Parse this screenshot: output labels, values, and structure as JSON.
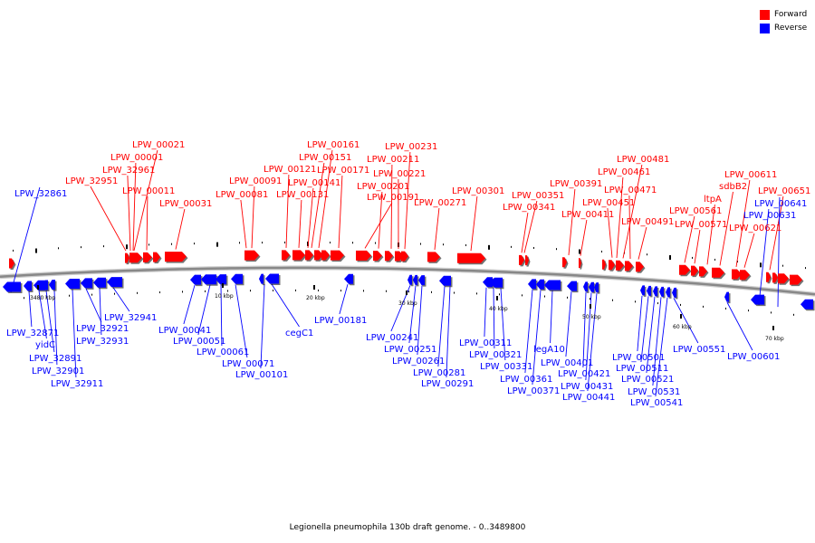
{
  "colors": {
    "forward": "#ff0000",
    "reverse": "#0000ff",
    "backbone": "#999999"
  },
  "legend": {
    "forward_label": "Forward",
    "reverse_label": "Reverse"
  },
  "caption": "Legionella pneumophila 130b draft genome. - 0..3489800",
  "kbp_ticks": [
    "3480 kbp",
    "10 kbp",
    "20 kbp",
    "30 kbp",
    "40 kbp",
    "50 kbp",
    "60 kbp",
    "70 kbp"
  ],
  "forward_genes": [
    "LPW_00021",
    "LPW_00001",
    "LPW_32961",
    "LPW_32951",
    "LPW_00011",
    "LPW_00031",
    "LPW_00091",
    "LPW_00081",
    "LPW_00121",
    "LPW_00131",
    "LPW_00161",
    "LPW_00151",
    "LPW_00141",
    "LPW_00171",
    "LPW_00191",
    "LPW_00201",
    "LPW_00211",
    "LPW_00221",
    "LPW_00231",
    "LPW_00271",
    "LPW_00301",
    "LPW_00351",
    "LPW_00341",
    "LPW_00391",
    "LPW_00411",
    "LPW_00481",
    "LPW_00461",
    "LPW_00471",
    "LPW_00451",
    "LPW_00491",
    "LPW_00561",
    "LPW_00571",
    "ltpA",
    "sdbB2",
    "LPW_00611",
    "LPW_00621",
    "LPW_00651"
  ],
  "reverse_genes": [
    "LPW_32861",
    "LPW_00641",
    "LPW_00631",
    "LPW_32871",
    "yidC",
    "LPW_32891",
    "LPW_32901",
    "LPW_32911",
    "LPW_32921",
    "LPW_32931",
    "LPW_32941",
    "LPW_00041",
    "LPW_00051",
    "LPW_00061",
    "LPW_00071",
    "LPW_00101",
    "cegC1",
    "LPW_00181",
    "LPW_00241",
    "LPW_00251",
    "LPW_00261",
    "LPW_00281",
    "LPW_00291",
    "LPW_00311",
    "LPW_00321",
    "LPW_00331",
    "LPW_00361",
    "LPW_00371",
    "legA10",
    "LPW_00401",
    "LPW_00421",
    "LPW_00431",
    "LPW_00441",
    "LPW_00501",
    "LPW_00511",
    "LPW_00521",
    "LPW_00531",
    "LPW_00541",
    "LPW_00551",
    "LPW_00601"
  ]
}
